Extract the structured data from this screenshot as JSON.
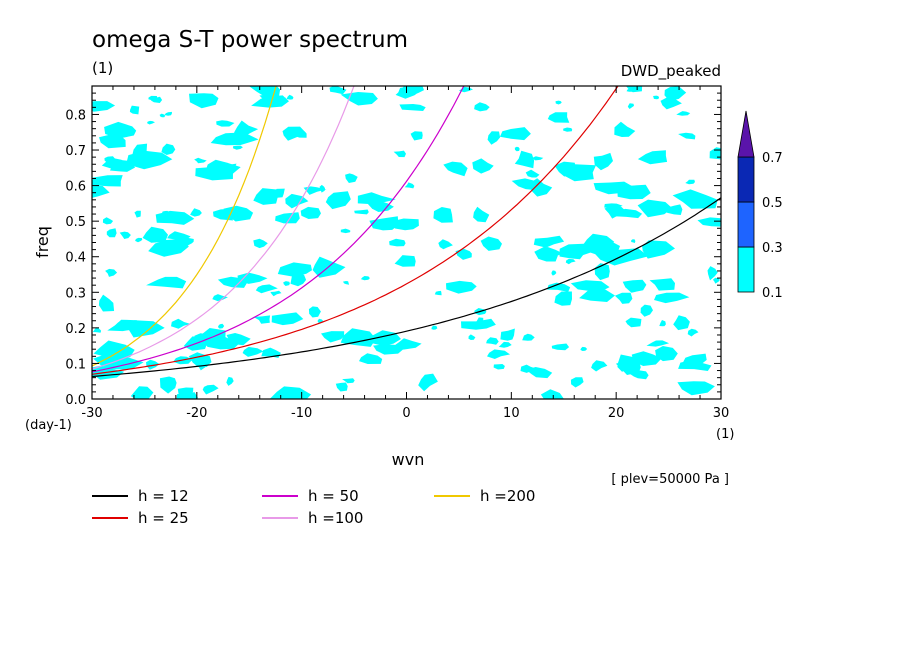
{
  "chart_data": {
    "type": "line",
    "title": "omega S-T power spectrum",
    "subtitle": "(1)",
    "model_label": "DWD_peaked",
    "annotation": "[ plev=50000 Pa ]",
    "xlabel": "wvn",
    "xunit": "(1)",
    "ylabel": "freq",
    "yunit": "(day-1)",
    "xlim": [
      -30,
      30
    ],
    "ylim": [
      0,
      0.88
    ],
    "xticks": [
      "-30",
      "-20",
      "-10",
      "0",
      "10",
      "20",
      "30"
    ],
    "yticks": [
      "0.0",
      "0.1",
      "0.2",
      "0.3",
      "0.4",
      "0.5",
      "0.6",
      "0.7",
      "0.8"
    ],
    "colorbar": {
      "levels": [
        "0.1",
        "0.3",
        "0.5",
        "0.7"
      ],
      "colors": [
        "#00ffff",
        "#1e64ff",
        "#0a28b4",
        "#5a14aa"
      ]
    },
    "contour_fill": {
      "level": "0.1",
      "color": "#00ffff"
    },
    "series": [
      {
        "name": "h = 12",
        "h": 12,
        "color": "#000000"
      },
      {
        "name": "h = 25",
        "h": 25,
        "color": "#e00000"
      },
      {
        "name": "h = 50",
        "h": 50,
        "color": "#cc00cc"
      },
      {
        "name": "h =100",
        "h": 100,
        "color": "#e89ae8"
      },
      {
        "name": "h =200",
        "h": 200,
        "color": "#f0c800"
      }
    ]
  }
}
